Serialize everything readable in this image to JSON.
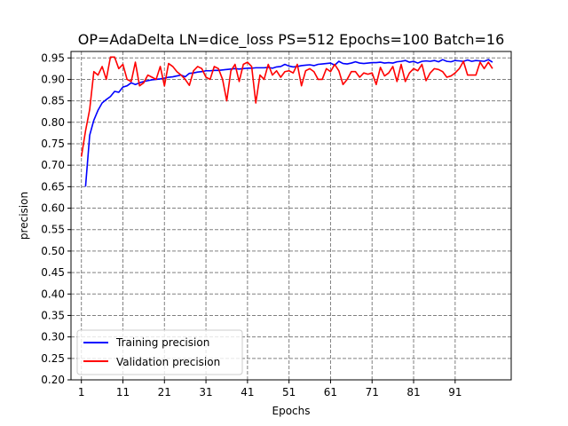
{
  "chart_data": {
    "type": "line",
    "title": "OP=AdaDelta LN=dice_loss PS=512 Epochs=100 Batch=16",
    "xlabel": "Epochs",
    "ylabel": "precision",
    "xlim": [
      -1.5,
      104.5
    ],
    "ylim": [
      0.2,
      0.965
    ],
    "xticks": [
      1,
      11,
      21,
      31,
      41,
      51,
      61,
      71,
      81,
      91
    ],
    "yticks": [
      0.2,
      0.25,
      0.3,
      0.35,
      0.4,
      0.45,
      0.5,
      0.55,
      0.6,
      0.65,
      0.7,
      0.75,
      0.8,
      0.85,
      0.9,
      0.95
    ],
    "grid": true,
    "legend_position": "lower-left",
    "series": [
      {
        "name": "Training precision",
        "color": "#0000ff",
        "x": [
          2,
          3,
          4,
          5,
          6,
          7,
          8,
          9,
          10,
          11,
          12,
          13,
          14,
          15,
          16,
          17,
          18,
          19,
          20,
          21,
          22,
          23,
          24,
          25,
          26,
          27,
          28,
          29,
          30,
          31,
          32,
          33,
          34,
          35,
          36,
          37,
          38,
          39,
          40,
          41,
          42,
          43,
          44,
          45,
          46,
          47,
          48,
          49,
          50,
          51,
          52,
          53,
          54,
          55,
          56,
          57,
          58,
          59,
          60,
          61,
          62,
          63,
          64,
          65,
          66,
          67,
          68,
          69,
          70,
          71,
          72,
          73,
          74,
          75,
          76,
          77,
          78,
          79,
          80,
          81,
          82,
          83,
          84,
          85,
          86,
          87,
          88,
          89,
          90,
          91,
          92,
          93,
          94,
          95,
          96,
          97,
          98,
          99,
          100
        ],
        "values": [
          0.65,
          0.77,
          0.805,
          0.828,
          0.845,
          0.853,
          0.86,
          0.872,
          0.87,
          0.882,
          0.885,
          0.892,
          0.888,
          0.892,
          0.895,
          0.897,
          0.899,
          0.9,
          0.901,
          0.903,
          0.905,
          0.906,
          0.908,
          0.91,
          0.906,
          0.914,
          0.915,
          0.917,
          0.918,
          0.92,
          0.92,
          0.921,
          0.921,
          0.922,
          0.923,
          0.924,
          0.925,
          0.924,
          0.925,
          0.926,
          0.926,
          0.927,
          0.927,
          0.927,
          0.928,
          0.926,
          0.929,
          0.93,
          0.935,
          0.931,
          0.929,
          0.93,
          0.932,
          0.933,
          0.934,
          0.932,
          0.935,
          0.936,
          0.937,
          0.938,
          0.933,
          0.942,
          0.937,
          0.936,
          0.938,
          0.941,
          0.938,
          0.937,
          0.938,
          0.939,
          0.939,
          0.94,
          0.938,
          0.939,
          0.938,
          0.941,
          0.942,
          0.944,
          0.94,
          0.942,
          0.938,
          0.942,
          0.943,
          0.942,
          0.944,
          0.941,
          0.946,
          0.942,
          0.941,
          0.944,
          0.943,
          0.942,
          0.945,
          0.942,
          0.944,
          0.943,
          0.942,
          0.946,
          0.94
        ]
      },
      {
        "name": "Validation precision",
        "color": "#ff0000",
        "x": [
          1,
          2,
          3,
          4,
          5,
          6,
          7,
          8,
          9,
          10,
          11,
          12,
          13,
          14,
          15,
          16,
          17,
          18,
          19,
          20,
          21,
          22,
          23,
          24,
          25,
          26,
          27,
          28,
          29,
          30,
          31,
          32,
          33,
          34,
          35,
          36,
          37,
          38,
          39,
          40,
          41,
          42,
          43,
          44,
          45,
          46,
          47,
          48,
          49,
          50,
          51,
          52,
          53,
          54,
          55,
          56,
          57,
          58,
          59,
          60,
          61,
          62,
          63,
          64,
          65,
          66,
          67,
          68,
          69,
          70,
          71,
          72,
          73,
          74,
          75,
          76,
          77,
          78,
          79,
          80,
          81,
          82,
          83,
          84,
          85,
          86,
          87,
          88,
          89,
          90,
          91,
          92,
          93,
          94,
          95,
          96,
          97,
          98,
          99,
          100
        ],
        "values": [
          0.72,
          0.78,
          0.83,
          0.918,
          0.91,
          0.93,
          0.9,
          0.952,
          0.952,
          0.925,
          0.935,
          0.9,
          0.895,
          0.94,
          0.885,
          0.892,
          0.91,
          0.905,
          0.9,
          0.93,
          0.885,
          0.937,
          0.93,
          0.918,
          0.91,
          0.9,
          0.886,
          0.92,
          0.93,
          0.925,
          0.905,
          0.9,
          0.93,
          0.925,
          0.9,
          0.85,
          0.92,
          0.935,
          0.895,
          0.935,
          0.94,
          0.93,
          0.845,
          0.91,
          0.9,
          0.935,
          0.91,
          0.92,
          0.905,
          0.918,
          0.92,
          0.915,
          0.935,
          0.885,
          0.92,
          0.925,
          0.918,
          0.9,
          0.9,
          0.925,
          0.918,
          0.935,
          0.92,
          0.888,
          0.9,
          0.918,
          0.918,
          0.905,
          0.915,
          0.912,
          0.915,
          0.888,
          0.928,
          0.908,
          0.915,
          0.93,
          0.895,
          0.935,
          0.895,
          0.915,
          0.925,
          0.92,
          0.935,
          0.897,
          0.915,
          0.925,
          0.923,
          0.918,
          0.905,
          0.908,
          0.915,
          0.925,
          0.942,
          0.91,
          0.91,
          0.91,
          0.94,
          0.925,
          0.94,
          0.925
        ]
      }
    ]
  }
}
